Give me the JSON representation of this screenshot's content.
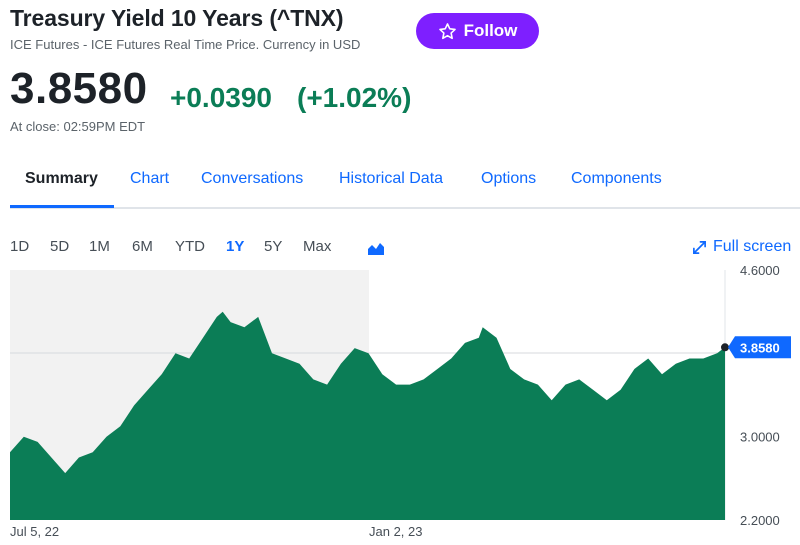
{
  "quote": {
    "title": "Treasury Yield 10 Years (^TNX)",
    "subtitle": "ICE Futures - ICE Futures Real Time Price. Currency in USD",
    "follow_label": "Follow",
    "price": "3.8580",
    "change": "+0.0390",
    "change_pct": "(+1.02%)",
    "close_time": "At close: 02:59PM EDT",
    "up_color": "#0b7d56",
    "accent_color": "#0f69ff",
    "follow_color": "#7e1fff"
  },
  "tabs": [
    {
      "label": "Summary",
      "active": true
    },
    {
      "label": "Chart"
    },
    {
      "label": "Conversations"
    },
    {
      "label": "Historical Data"
    },
    {
      "label": "Options"
    },
    {
      "label": "Components"
    }
  ],
  "ranges": [
    {
      "label": "1D"
    },
    {
      "label": "5D"
    },
    {
      "label": "1M"
    },
    {
      "label": "6M"
    },
    {
      "label": "YTD"
    },
    {
      "label": "1Y",
      "active": true
    },
    {
      "label": "5Y"
    },
    {
      "label": "Max"
    }
  ],
  "chart_type_icon": "mountain-chart-icon",
  "fullscreen": {
    "label": "Full screen",
    "icon": "expand-arrows-icon"
  },
  "chart_data": {
    "type": "area",
    "title": "",
    "xlabel": "",
    "ylabel": "",
    "ylim": [
      2.2,
      4.6
    ],
    "y_ticks": [
      "4.6000",
      "3.0000",
      "2.2000"
    ],
    "x_ticks": [
      "Jul 5, 22",
      "Jan 2, 23"
    ],
    "current_label": "3.8580",
    "fill_color": "#0b7d56",
    "prior_period_shaded": true,
    "grid": false,
    "series": [
      {
        "x": [
          "2022-07-05",
          "2022-07-12",
          "2022-07-19",
          "2022-07-26",
          "2022-08-02",
          "2022-08-09",
          "2022-08-16",
          "2022-08-23",
          "2022-08-30",
          "2022-09-06",
          "2022-09-13",
          "2022-09-20",
          "2022-09-27",
          "2022-10-04",
          "2022-10-11",
          "2022-10-18",
          "2022-10-21",
          "2022-10-25",
          "2022-11-01",
          "2022-11-08",
          "2022-11-15",
          "2022-11-22",
          "2022-11-29",
          "2022-12-06",
          "2022-12-13",
          "2022-12-20",
          "2022-12-27",
          "2023-01-03",
          "2023-01-10",
          "2023-01-17",
          "2023-01-24",
          "2023-01-31",
          "2023-02-07",
          "2023-02-14",
          "2023-02-21",
          "2023-02-28",
          "2023-03-02",
          "2023-03-09",
          "2023-03-16",
          "2023-03-23",
          "2023-03-30",
          "2023-04-06",
          "2023-04-13",
          "2023-04-20",
          "2023-04-27",
          "2023-05-04",
          "2023-05-11",
          "2023-05-18",
          "2023-05-25",
          "2023-06-01",
          "2023-06-08",
          "2023-06-15",
          "2023-06-22",
          "2023-06-29",
          "2023-07-03"
        ],
        "y": [
          2.85,
          3.0,
          2.95,
          2.8,
          2.65,
          2.8,
          2.85,
          3.0,
          3.1,
          3.3,
          3.45,
          3.6,
          3.8,
          3.75,
          3.95,
          4.15,
          4.2,
          4.1,
          4.05,
          4.15,
          3.8,
          3.75,
          3.7,
          3.55,
          3.5,
          3.7,
          3.85,
          3.8,
          3.6,
          3.5,
          3.5,
          3.55,
          3.65,
          3.75,
          3.9,
          3.95,
          4.05,
          3.95,
          3.65,
          3.55,
          3.5,
          3.35,
          3.5,
          3.55,
          3.45,
          3.35,
          3.45,
          3.65,
          3.75,
          3.6,
          3.7,
          3.75,
          3.75,
          3.8,
          3.858
        ]
      }
    ]
  }
}
